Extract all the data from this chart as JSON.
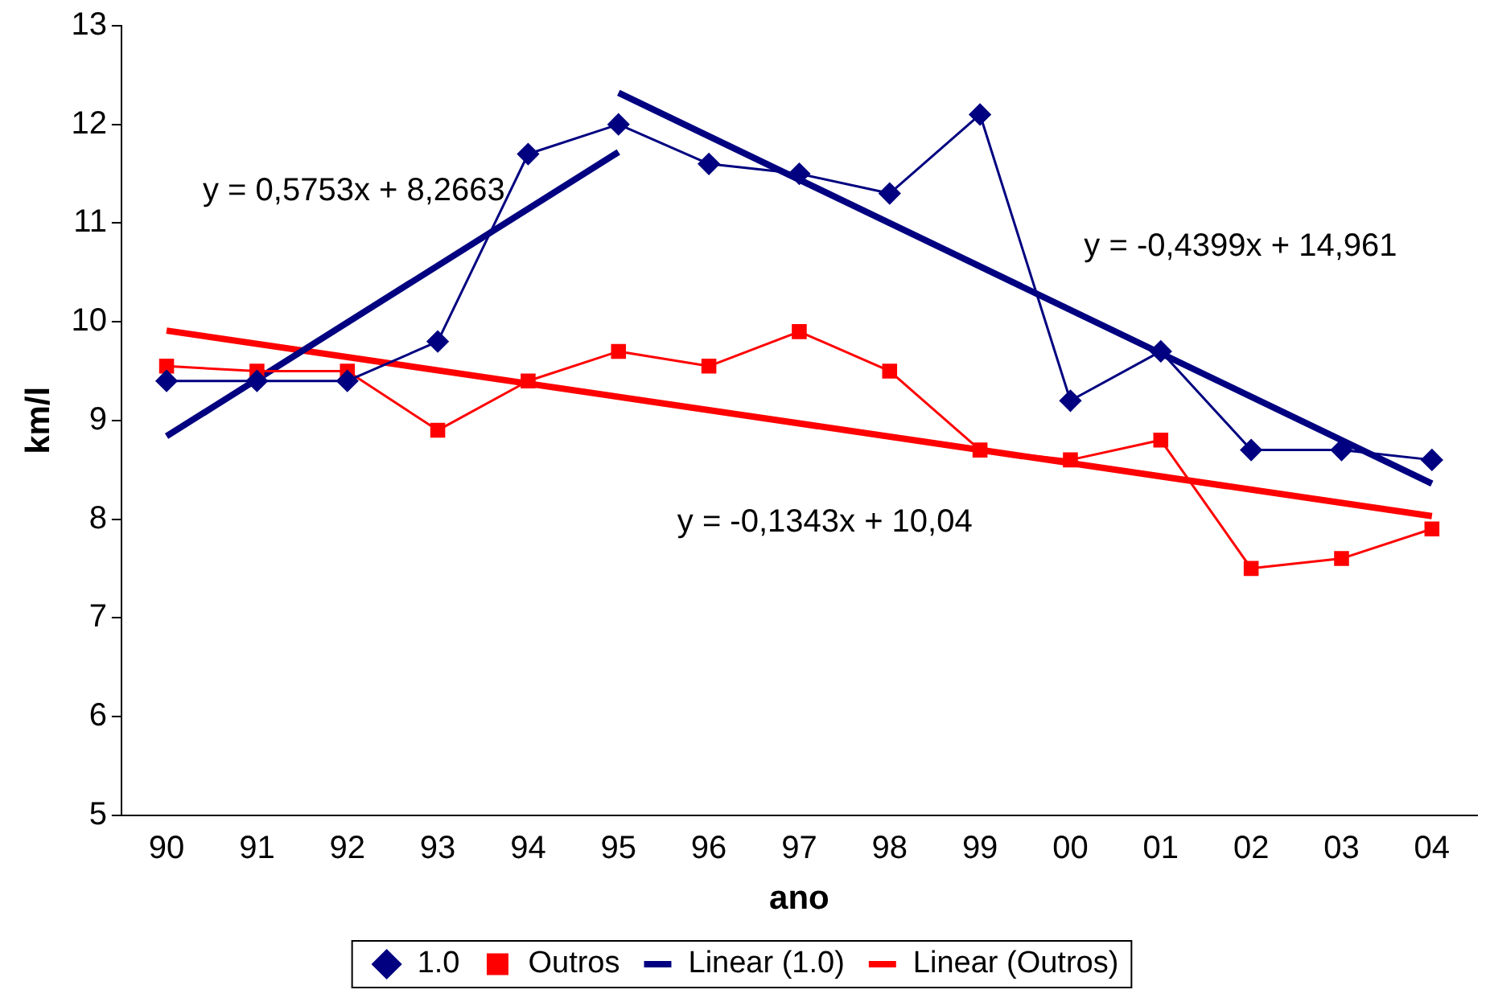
{
  "chart_data": {
    "type": "line",
    "xlabel": "ano",
    "ylabel": "km/l",
    "categories": [
      "90",
      "91",
      "92",
      "93",
      "94",
      "95",
      "96",
      "97",
      "98",
      "99",
      "00",
      "01",
      "02",
      "03",
      "04"
    ],
    "ylim": [
      5,
      13
    ],
    "yticks": [
      5,
      6,
      7,
      8,
      9,
      10,
      11,
      12,
      13
    ],
    "grid": false,
    "legend": "bottom",
    "series": [
      {
        "name": "1.0",
        "color": "#000080",
        "marker": "diamond",
        "values": [
          9.4,
          9.4,
          9.4,
          9.8,
          11.7,
          12.0,
          11.6,
          11.5,
          11.3,
          12.1,
          9.2,
          9.7,
          8.7,
          8.7,
          8.6
        ]
      },
      {
        "name": "Outros",
        "color": "#ff0000",
        "marker": "square",
        "values": [
          9.55,
          9.5,
          9.5,
          8.9,
          9.4,
          9.7,
          9.55,
          9.9,
          9.5,
          8.7,
          8.6,
          8.8,
          7.5,
          7.6,
          7.9
        ]
      },
      {
        "name": "Linear (1.0)",
        "color": "#000080",
        "marker": "none",
        "x": [
          "90",
          "95"
        ],
        "values": [
          8.84,
          11.72
        ]
      },
      {
        "color": "#000080",
        "marker": "none",
        "x": [
          "95",
          "04"
        ],
        "values": [
          12.32,
          8.36
        ]
      },
      {
        "name": "Linear (Outros)",
        "color": "#ff0000",
        "marker": "none",
        "x": [
          "90",
          "04"
        ],
        "values": [
          9.91,
          8.03
        ]
      }
    ],
    "annotations": [
      "y = 0,5753x + 8,2663",
      "y = -0,4399x + 14,961",
      "y = -0,1343x + 10,04"
    ]
  }
}
